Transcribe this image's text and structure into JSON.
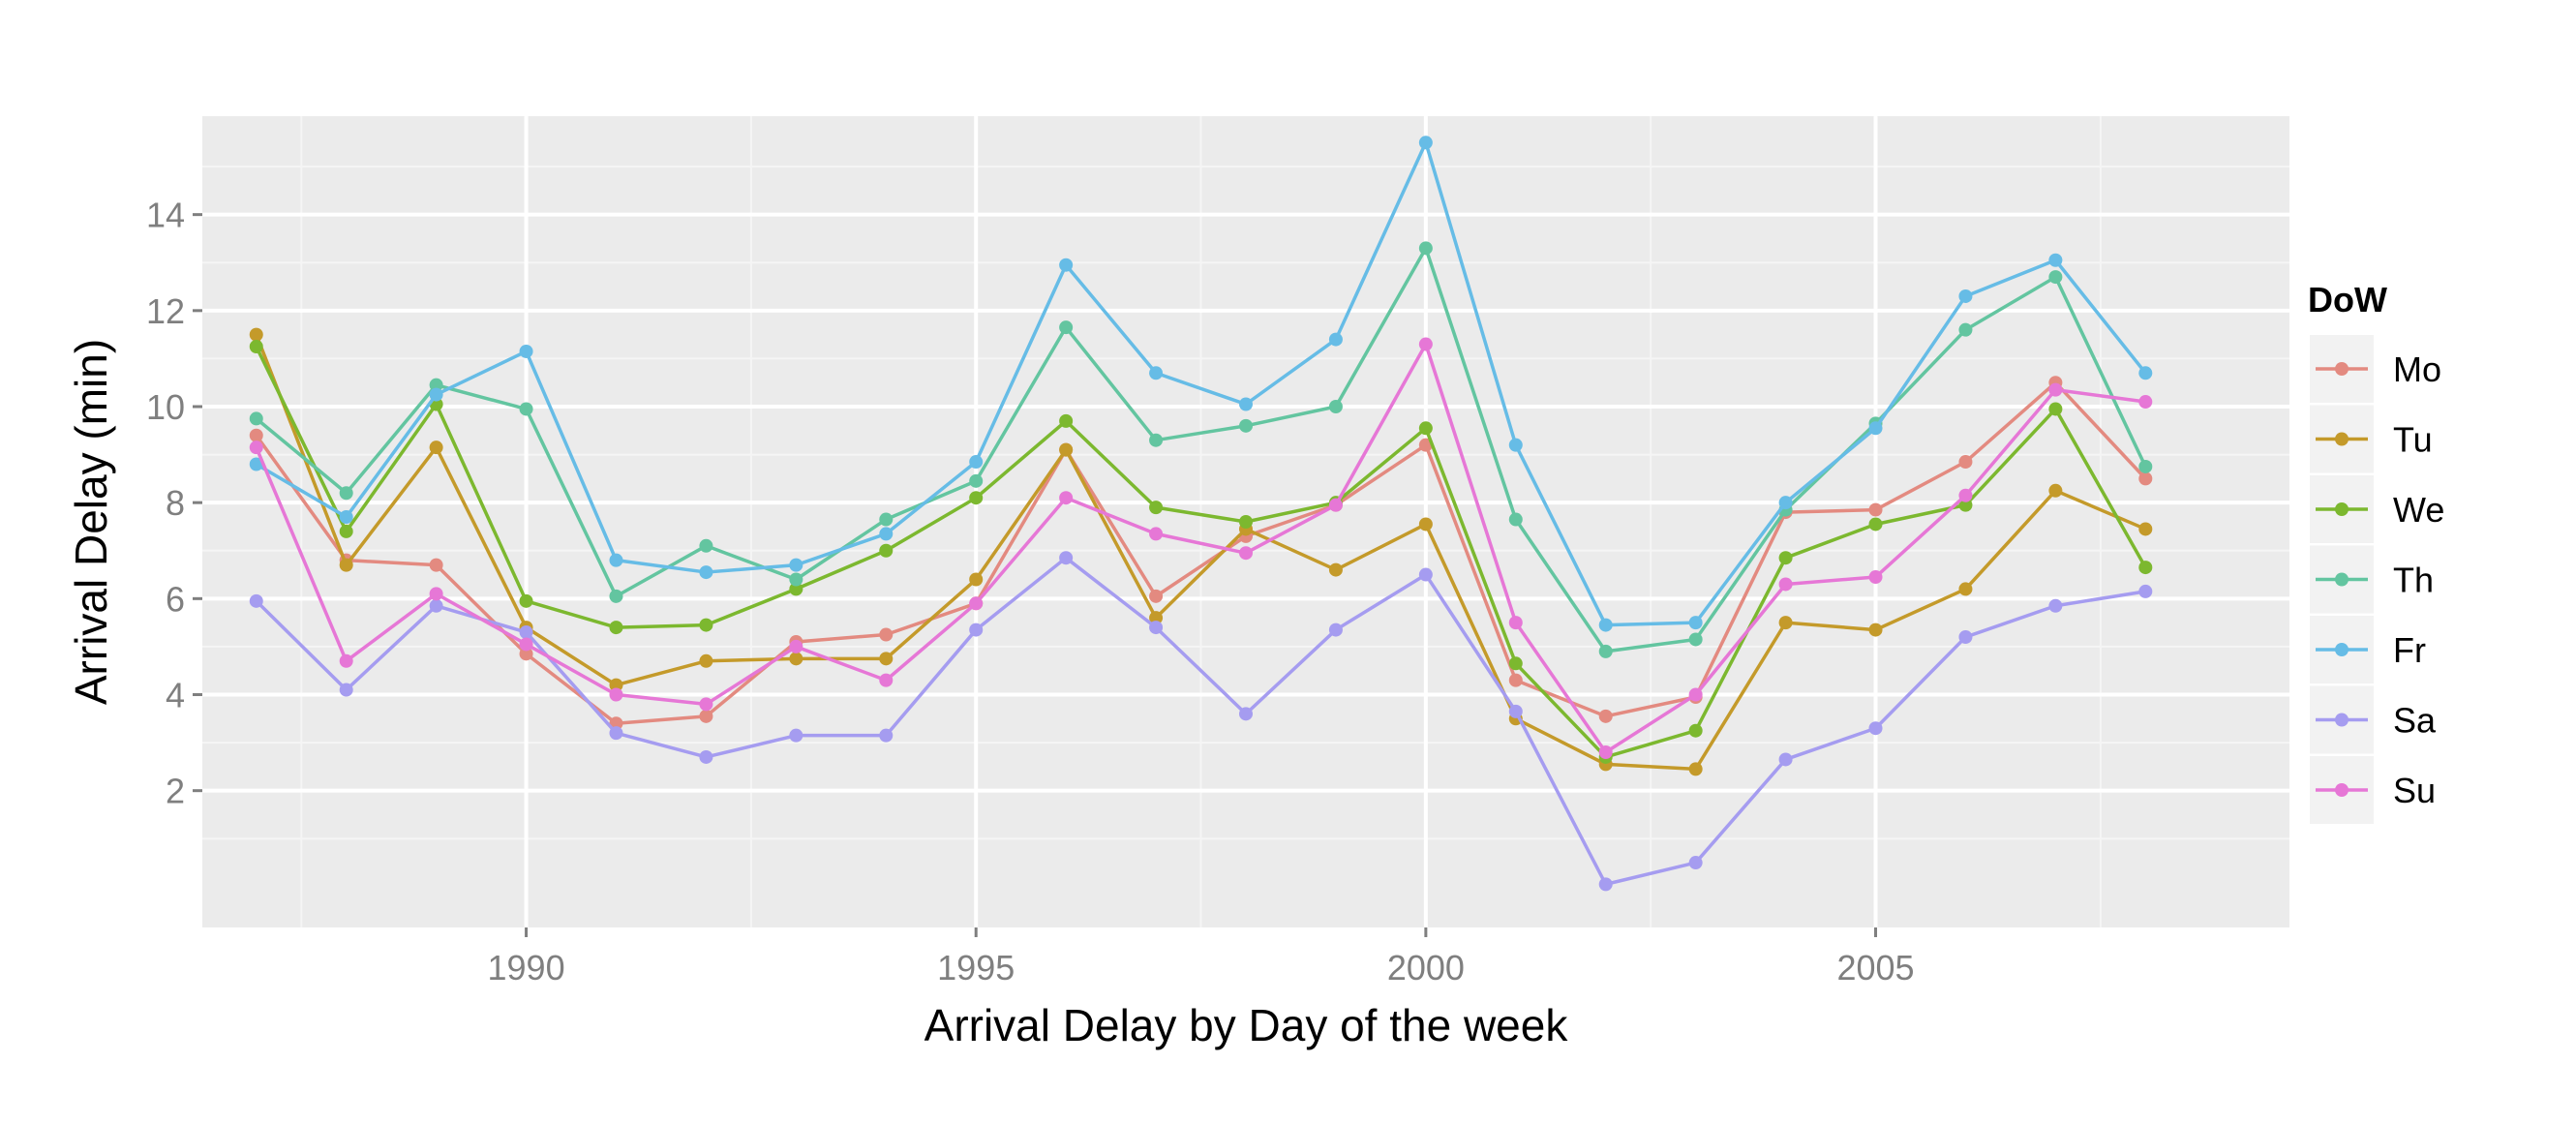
{
  "chart_data": {
    "type": "line",
    "title": "",
    "xlabel": "Arrival Delay by Day of the week",
    "ylabel": "Arrival Delay (min)",
    "xlim": [
      1986.4,
      2009.6
    ],
    "ylim": [
      -0.85,
      16.05
    ],
    "x_ticks": [
      1990,
      1995,
      2000,
      2005
    ],
    "x_tick_labels": [
      "1990",
      "1995",
      "2000",
      "2005"
    ],
    "y_ticks": [
      2,
      4,
      6,
      8,
      10,
      12,
      14
    ],
    "y_tick_labels": [
      "2",
      "4",
      "6",
      "8",
      "10",
      "12",
      "14"
    ],
    "grid": true,
    "legend": {
      "title": "DoW",
      "position": "right"
    },
    "x": [
      1987,
      1988,
      1989,
      1990,
      1991,
      1992,
      1993,
      1994,
      1995,
      1996,
      1997,
      1998,
      1999,
      2000,
      2001,
      2002,
      2003,
      2004,
      2005,
      2006,
      2007,
      2008
    ],
    "series": [
      {
        "name": "Mo",
        "color": "#E38A80",
        "values": [
          9.4,
          6.8,
          6.7,
          4.85,
          3.4,
          3.55,
          5.1,
          5.25,
          5.9,
          9.1,
          6.05,
          7.3,
          7.95,
          9.2,
          4.3,
          3.55,
          3.95,
          7.8,
          7.85,
          8.85,
          10.5,
          8.5
        ]
      },
      {
        "name": "Tu",
        "color": "#C49A2A",
        "values": [
          11.5,
          6.7,
          9.15,
          5.4,
          4.2,
          4.7,
          4.75,
          4.75,
          6.4,
          9.1,
          5.6,
          7.45,
          6.6,
          7.55,
          3.5,
          2.55,
          2.45,
          5.5,
          5.35,
          6.2,
          8.25,
          7.45
        ]
      },
      {
        "name": "We",
        "color": "#7CB82F",
        "values": [
          11.25,
          7.4,
          10.05,
          5.95,
          5.4,
          5.45,
          6.2,
          7.0,
          8.1,
          9.7,
          7.9,
          7.6,
          8.0,
          9.55,
          4.65,
          2.7,
          3.25,
          6.85,
          7.55,
          7.95,
          9.95,
          6.65
        ]
      },
      {
        "name": "Th",
        "color": "#63C5A0",
        "values": [
          9.75,
          8.2,
          10.45,
          9.95,
          6.05,
          7.1,
          6.4,
          7.65,
          8.45,
          11.65,
          9.3,
          9.6,
          10.0,
          13.3,
          7.65,
          4.9,
          5.15,
          7.85,
          9.65,
          11.6,
          12.7,
          8.75
        ]
      },
      {
        "name": "Fr",
        "color": "#66BCE6",
        "values": [
          8.8,
          7.7,
          10.25,
          11.15,
          6.8,
          6.55,
          6.7,
          7.35,
          8.85,
          12.95,
          10.7,
          10.05,
          11.4,
          15.5,
          9.2,
          5.45,
          5.5,
          8.0,
          9.55,
          12.3,
          13.05,
          10.7
        ]
      },
      {
        "name": "Sa",
        "color": "#A59CF0",
        "values": [
          5.95,
          4.1,
          5.85,
          5.3,
          3.2,
          2.7,
          3.15,
          3.15,
          5.35,
          6.85,
          5.4,
          3.6,
          5.35,
          6.5,
          3.65,
          0.05,
          0.5,
          2.65,
          3.3,
          5.2,
          5.85,
          6.15
        ]
      },
      {
        "name": "Su",
        "color": "#E677D6",
        "values": [
          9.15,
          4.7,
          6.1,
          5.05,
          4.0,
          3.8,
          5.0,
          4.3,
          5.9,
          8.1,
          7.35,
          6.95,
          7.95,
          11.3,
          5.5,
          2.8,
          4.0,
          6.3,
          6.45,
          8.15,
          10.35,
          10.1
        ]
      }
    ]
  }
}
